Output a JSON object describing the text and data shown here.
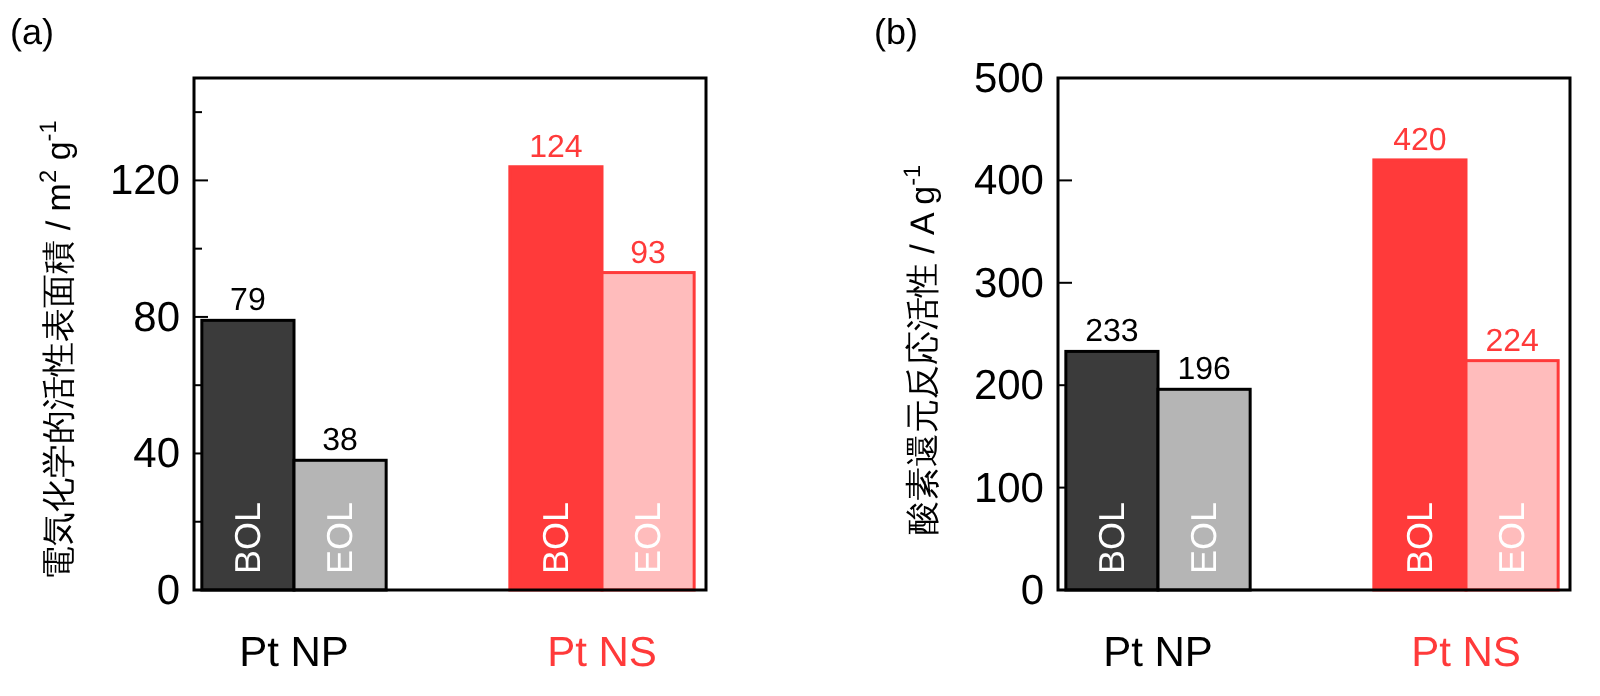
{
  "chart_data": [
    {
      "type": "bar",
      "title": "(a)",
      "ylabel": "電気化学的活性表面積 / m$^{2}$ g$^{-1}$",
      "categories": [
        "Pt NP",
        "Pt NS"
      ],
      "ylim": [
        0,
        150
      ],
      "yticks": [
        0,
        {
          "value": 20,
          "label": null
        },
        40,
        {
          "value": 60,
          "label": null
        },
        80,
        {
          "value": 100,
          "label": null
        },
        120,
        {
          "value": 140,
          "label": null
        }
      ],
      "data_labels": true,
      "series": [
        {
          "name": "BOL",
          "values": [
            79,
            124
          ],
          "colors": [
            "#3b3b3b",
            "#ff3a3a"
          ]
        },
        {
          "name": "EOL",
          "values": [
            38,
            93
          ],
          "colors": [
            "#b5b5b5",
            "#ffbcbc"
          ]
        }
      ]
    },
    {
      "type": "bar",
      "title": "(b)",
      "ylabel": "酸素還元反応活性 / A g$^{-1}$",
      "categories": [
        "Pt NP",
        "Pt NS"
      ],
      "ylim": [
        0,
        500
      ],
      "yticks": [
        0,
        100,
        200,
        300,
        400,
        500
      ],
      "series": [
        {
          "name": "BOL",
          "values": [
            233,
            420
          ],
          "colors": [
            "#3b3b3b",
            "#ff3a3a"
          ],
          "value_labels": [
            "233",
            "420"
          ]
        },
        {
          "name": "EOL",
          "values": [
            196,
            224
          ],
          "colors": [
            "#b5b5b5",
            "#ffbcbc"
          ],
          "value_labels": [
            "196",
            "224"
          ]
        }
      ]
    }
  ]
}
